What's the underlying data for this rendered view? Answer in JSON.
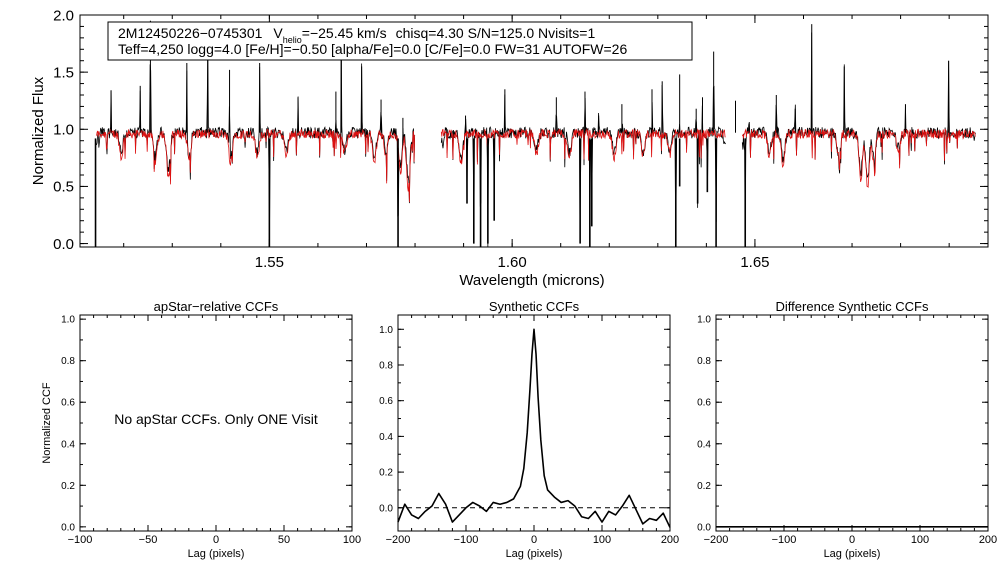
{
  "chart_data": [
    {
      "type": "line",
      "title": "",
      "xlabel": "Wavelength (microns)",
      "ylabel": "Normalized Flux",
      "xlim": [
        1.511,
        1.698
      ],
      "ylim": [
        -0.03,
        2.0
      ],
      "x_ticks": [
        1.55,
        1.6,
        1.65
      ],
      "x_tick_labels": [
        "1.55",
        "1.60",
        "1.65"
      ],
      "y_ticks": [
        0.0,
        0.5,
        1.0,
        1.5,
        2.0
      ],
      "y_tick_labels": [
        "0.0",
        "0.5",
        "1.0",
        "1.5",
        "2.0"
      ],
      "annotation": {
        "object_id": "2M12450226−0745301",
        "v_symbol": "V",
        "v_subscript": "helio",
        "v_value": "=−25.45 km/s",
        "stats": "chisq=4.30  S/N=125.0  Nvisits=1",
        "params": "Teff=4,250 logg=4.0 [Fe/H]=−0.50 [alpha/Fe]=0.0 [C/Fe]=0.0 FW=31 AUTOFW=26"
      },
      "chips": [
        [
          1.5144,
          1.58
        ],
        [
          1.5854,
          1.644
        ],
        [
          1.6474,
          1.6955
        ]
      ],
      "series": [
        {
          "name": "observed spectrum",
          "color": "#000000",
          "continuum": 0.97
        },
        {
          "name": "synthetic model",
          "color": "#dd1111",
          "continuum": 0.96
        }
      ],
      "emission_spikes": [
        [
          1.5174,
          1.34
        ],
        [
          1.5234,
          1.38
        ],
        [
          1.5255,
          1.95
        ],
        [
          1.533,
          1.58
        ],
        [
          1.5373,
          1.78
        ],
        [
          1.5418,
          1.52
        ],
        [
          1.548,
          1.58
        ],
        [
          1.5559,
          1.28
        ],
        [
          1.5637,
          1.33
        ],
        [
          1.5648,
          1.85
        ],
        [
          1.569,
          1.55
        ],
        [
          1.573,
          1.26
        ],
        [
          1.5775,
          1.1
        ],
        [
          1.5904,
          1.12
        ],
        [
          1.5985,
          1.35
        ],
        [
          1.6091,
          1.28
        ],
        [
          1.615,
          1.33
        ],
        [
          1.6178,
          1.12
        ],
        [
          1.6226,
          1.22
        ],
        [
          1.6288,
          1.35
        ],
        [
          1.6309,
          1.42
        ],
        [
          1.6345,
          1.48
        ],
        [
          1.6379,
          1.18
        ],
        [
          1.6392,
          1.28
        ],
        [
          1.6415,
          1.68
        ],
        [
          1.646,
          1.25
        ],
        [
          1.6488,
          1.05
        ],
        [
          1.6544,
          1.3
        ],
        [
          1.6583,
          1.18
        ],
        [
          1.6617,
          1.92
        ],
        [
          1.6684,
          1.55
        ],
        [
          1.681,
          1.22
        ],
        [
          1.6899,
          1.6
        ]
      ],
      "deep_absorptions": [
        [
          1.5142,
          -0.03
        ],
        [
          1.55,
          -0.03
        ],
        [
          1.5765,
          -0.03
        ],
        [
          1.5907,
          0.35
        ],
        [
          1.5921,
          0.0
        ],
        [
          1.5935,
          -0.03
        ],
        [
          1.595,
          0.0
        ],
        [
          1.5963,
          0.2
        ],
        [
          1.614,
          0.0
        ],
        [
          1.616,
          -0.03
        ],
        [
          1.6164,
          0.15
        ],
        [
          1.6337,
          -0.03
        ],
        [
          1.6345,
          0.5
        ],
        [
          1.6382,
          0.35
        ],
        [
          1.6402,
          0.45
        ],
        [
          1.642,
          -0.03
        ],
        [
          1.648,
          -0.03
        ]
      ],
      "model_absorptions": [
        [
          1.5195,
          0.75
        ],
        [
          1.5265,
          0.72
        ],
        [
          1.5292,
          0.58
        ],
        [
          1.5335,
          0.74
        ],
        [
          1.542,
          0.72
        ],
        [
          1.5475,
          0.75
        ],
        [
          1.5535,
          0.76
        ],
        [
          1.5655,
          0.78
        ],
        [
          1.5716,
          0.7
        ],
        [
          1.574,
          0.78
        ],
        [
          1.577,
          0.62
        ],
        [
          1.5786,
          0.48
        ],
        [
          1.5895,
          0.7
        ],
        [
          1.605,
          0.78
        ],
        [
          1.6118,
          0.75
        ],
        [
          1.621,
          0.74
        ],
        [
          1.627,
          0.76
        ],
        [
          1.6325,
          0.78
        ],
        [
          1.653,
          0.76
        ],
        [
          1.6558,
          0.68
        ],
        [
          1.6672,
          0.76
        ],
        [
          1.6718,
          0.56
        ],
        [
          1.6732,
          0.5
        ],
        [
          1.6745,
          0.72
        ],
        [
          1.6795,
          0.8
        ]
      ]
    },
    {
      "type": "line",
      "title": "apStar−relative CCFs",
      "xlabel": "Lag (pixels)",
      "ylabel": "Normalized CCF",
      "xlim": [
        -100,
        100
      ],
      "ylim": [
        -0.02,
        1.02
      ],
      "x_ticks": [
        -100,
        -50,
        0,
        50,
        100
      ],
      "x_tick_labels": [
        "−100",
        "−50",
        "0",
        "50",
        "100"
      ],
      "y_ticks": [
        0.0,
        0.2,
        0.4,
        0.6,
        0.8,
        1.0
      ],
      "y_tick_labels": [
        "0.0",
        "0.2",
        "0.4",
        "0.6",
        "0.8",
        "1.0"
      ],
      "message": "No apStar CCFs.  Only ONE Visit",
      "series": []
    },
    {
      "type": "line",
      "title": "Synthetic CCFs",
      "xlabel": "Lag (pixels)",
      "ylabel": "",
      "xlim": [
        -200,
        200
      ],
      "ylim": [
        -0.13,
        1.08
      ],
      "x_ticks": [
        -200,
        -100,
        0,
        100,
        200
      ],
      "x_tick_labels": [
        "−200",
        "−100",
        "0",
        "100",
        "200"
      ],
      "y_ticks": [
        0.0,
        0.2,
        0.4,
        0.6,
        0.8,
        1.0
      ],
      "y_tick_labels": [
        "0.0",
        "0.2",
        "0.4",
        "0.6",
        "0.8",
        "1.0"
      ],
      "zero_line": {
        "y": 0.0,
        "style": "dashed"
      },
      "series": [
        {
          "name": "synthetic CCF",
          "x": [
            -200,
            -190,
            -180,
            -170,
            -160,
            -150,
            -140,
            -130,
            -120,
            -110,
            -100,
            -90,
            -80,
            -70,
            -60,
            -50,
            -40,
            -30,
            -20,
            -15,
            -10,
            -6,
            -3,
            0,
            3,
            6,
            10,
            15,
            20,
            30,
            40,
            50,
            60,
            70,
            80,
            90,
            100,
            110,
            120,
            130,
            140,
            150,
            160,
            170,
            180,
            190,
            200
          ],
          "y": [
            -0.08,
            0.02,
            -0.04,
            -0.06,
            -0.02,
            0.01,
            0.08,
            0.02,
            -0.08,
            -0.04,
            0.0,
            0.03,
            0.01,
            -0.02,
            0.03,
            0.02,
            0.03,
            0.05,
            0.12,
            0.22,
            0.42,
            0.66,
            0.86,
            1.0,
            0.86,
            0.62,
            0.38,
            0.18,
            0.1,
            0.06,
            0.03,
            0.04,
            0.01,
            -0.05,
            -0.06,
            -0.02,
            -0.08,
            -0.02,
            -0.04,
            0.01,
            0.07,
            -0.01,
            -0.09,
            -0.06,
            -0.07,
            -0.03,
            -0.11
          ]
        }
      ]
    },
    {
      "type": "line",
      "title": "Difference Synthetic CCFs",
      "xlabel": "Lag (pixels)",
      "ylabel": "",
      "xlim": [
        -200,
        200
      ],
      "ylim": [
        -0.02,
        1.02
      ],
      "x_ticks": [
        -200,
        -100,
        0,
        100,
        200
      ],
      "x_tick_labels": [
        "−200",
        "−100",
        "0",
        "100",
        "200"
      ],
      "y_ticks": [
        0.0,
        0.2,
        0.4,
        0.6,
        0.8,
        1.0
      ],
      "y_tick_labels": [
        "0.0",
        "0.2",
        "0.4",
        "0.6",
        "0.8",
        "1.0"
      ],
      "series": [
        {
          "name": "difference CCF",
          "x": [
            -200,
            200
          ],
          "y": [
            0.0,
            0.0
          ]
        }
      ]
    }
  ]
}
